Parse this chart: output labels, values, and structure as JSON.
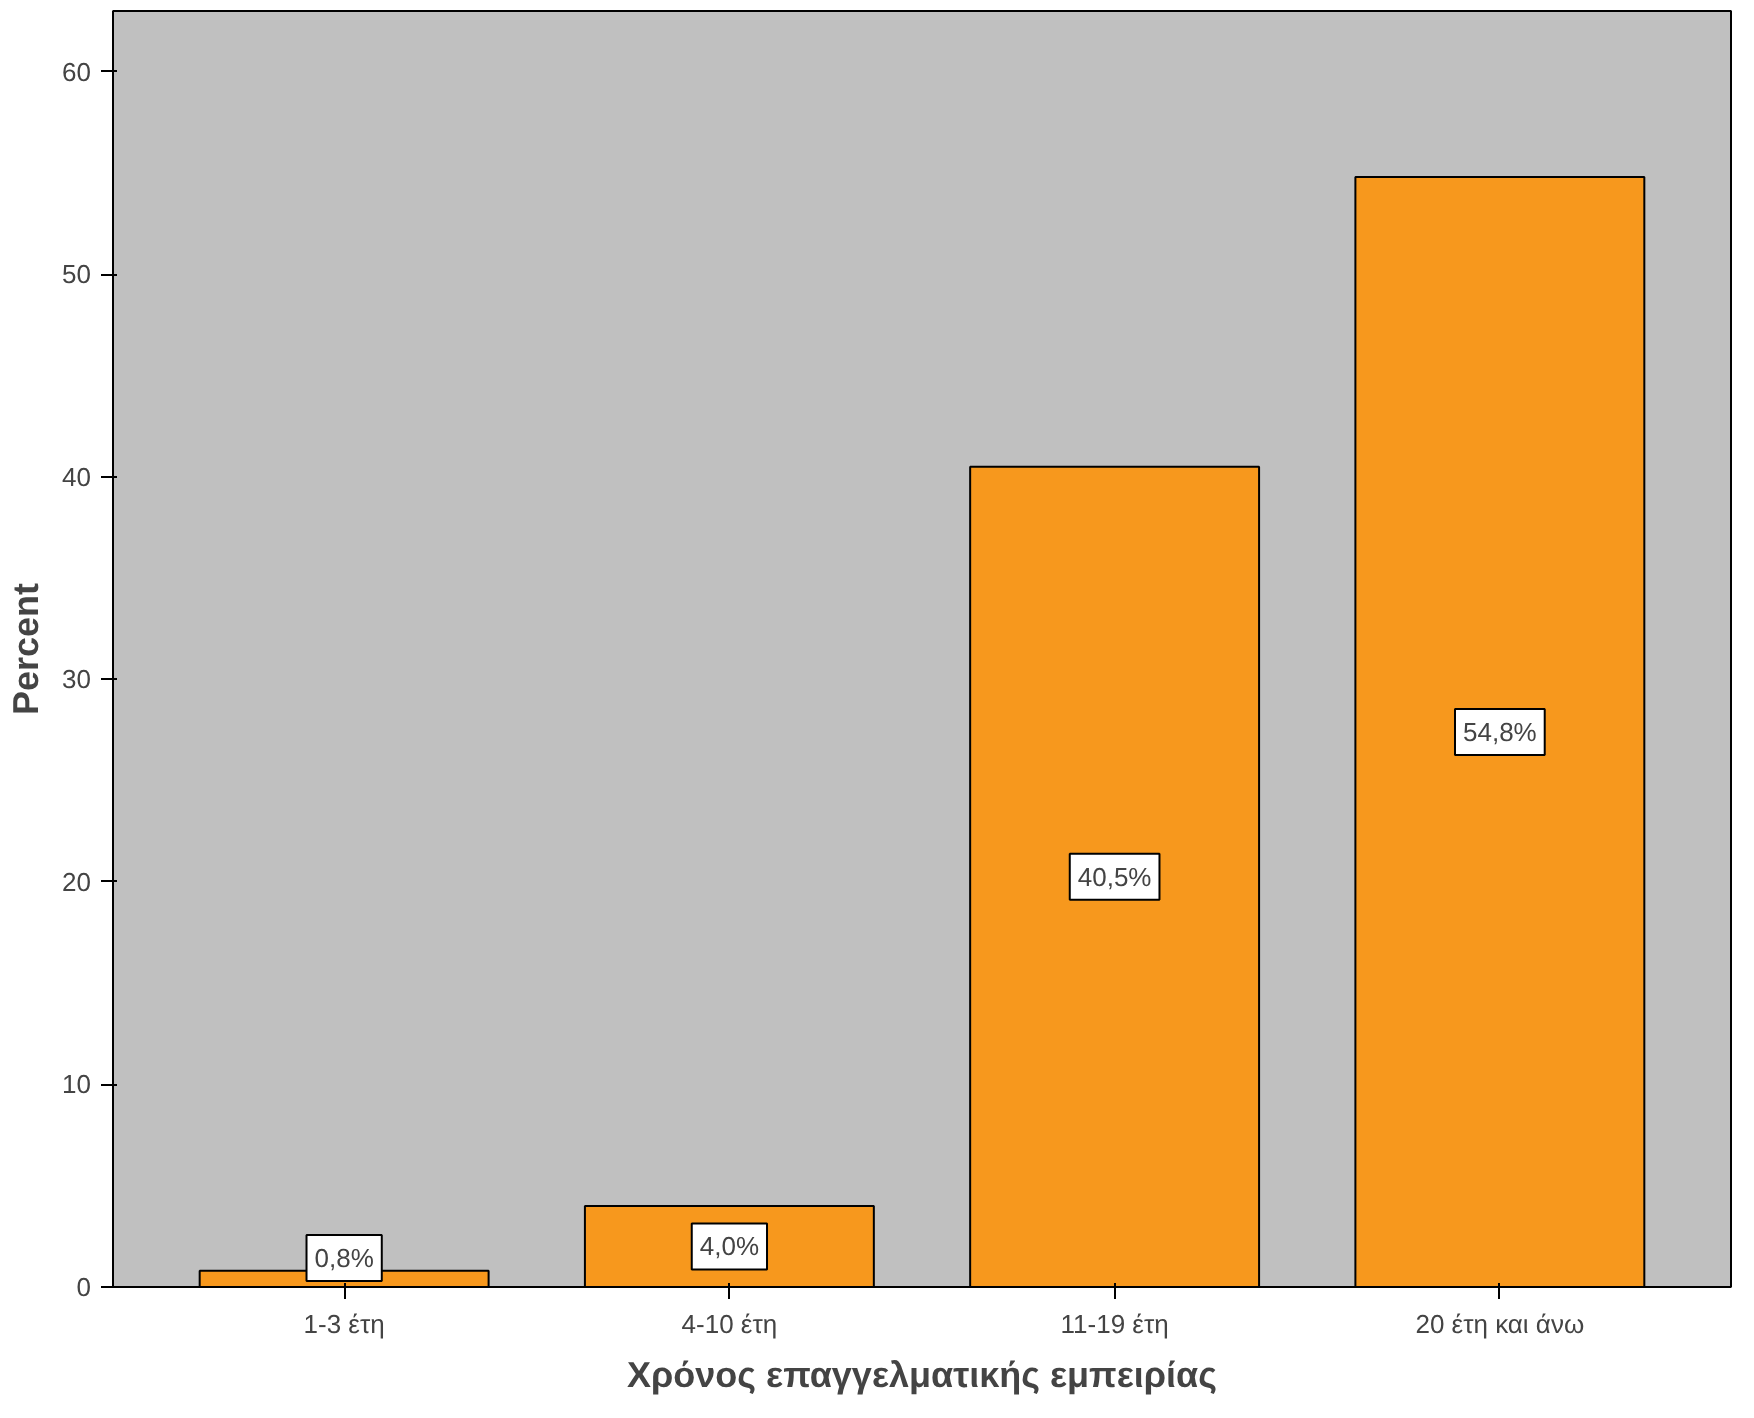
{
  "chart_data": {
    "type": "bar",
    "xlabel": "Χρόνος επαγγελματικής εμπειρίας",
    "ylabel": "Percent",
    "categories": [
      "1-3 έτη",
      "4-10 έτη",
      "11-19 έτη",
      "20 έτη και άνω"
    ],
    "values": [
      0.8,
      4.0,
      40.5,
      54.8
    ],
    "value_labels": [
      "0,8%",
      "4,0%",
      "40,5%",
      "54,8%"
    ],
    "color": "#f7981d",
    "ylim": [
      0,
      63
    ],
    "yticks": [
      0,
      10,
      20,
      30,
      40,
      50,
      60
    ],
    "grid": false
  }
}
